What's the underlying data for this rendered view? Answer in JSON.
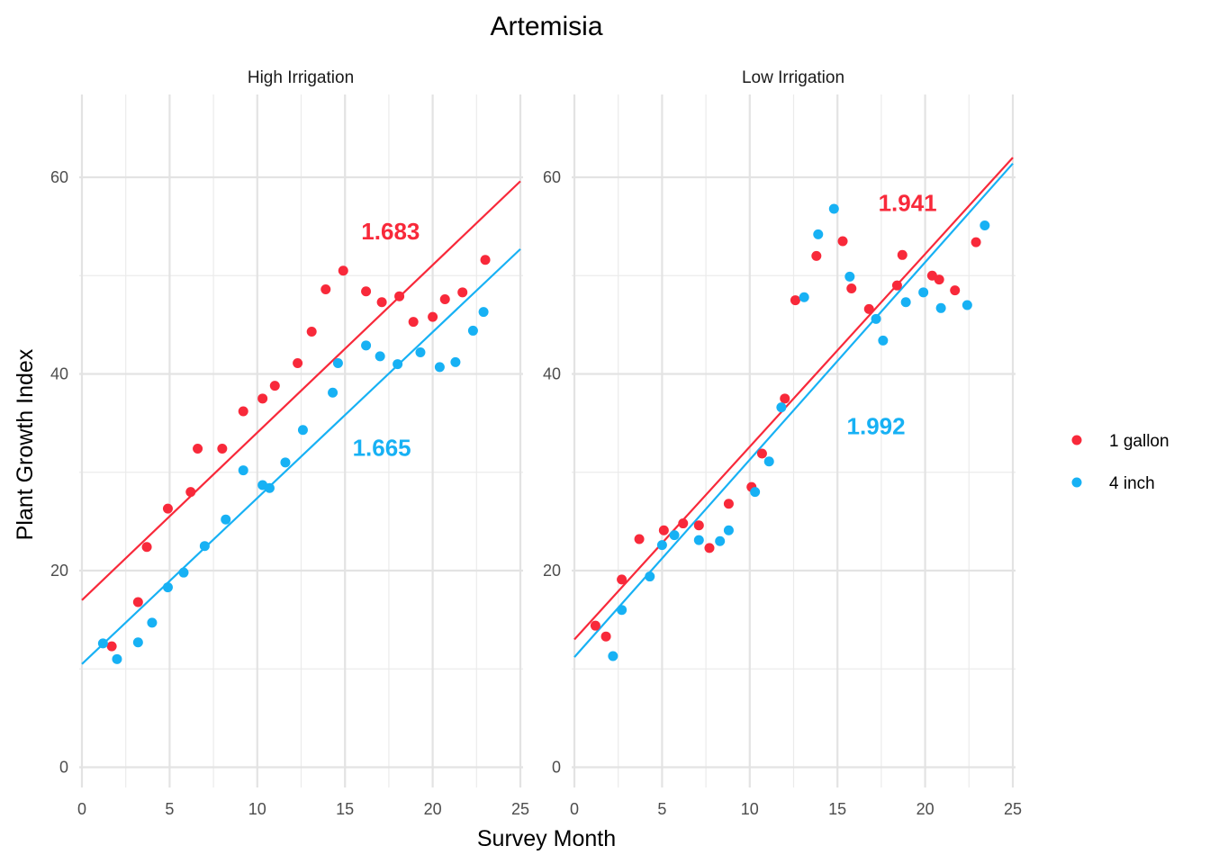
{
  "chart_data": {
    "type": "scatter",
    "title": "Artemisia",
    "xlabel": "Survey Month",
    "ylabel": "Plant Growth Index",
    "xlim": [
      0,
      25
    ],
    "ylim": [
      0,
      68
    ],
    "x_ticks": [
      "0",
      "5",
      "10",
      "15",
      "20",
      "25"
    ],
    "y_ticks": [
      "0",
      "20",
      "40",
      "60"
    ],
    "grid": true,
    "legend_position": "right",
    "legend": [
      {
        "label": "1 gallon",
        "color": "#F8293A"
      },
      {
        "label": "4 inch",
        "color": "#17B1F4"
      }
    ],
    "panels": [
      {
        "strip": "High Irrigation",
        "series": [
          {
            "name": "1 gallon",
            "color": "#F8293A",
            "points": [
              [
                1.7,
                12.3
              ],
              [
                3.2,
                16.8
              ],
              [
                3.7,
                22.4
              ],
              [
                4.9,
                26.3
              ],
              [
                6.2,
                28.0
              ],
              [
                6.6,
                32.4
              ],
              [
                8.0,
                32.4
              ],
              [
                9.2,
                36.2
              ],
              [
                10.3,
                37.5
              ],
              [
                11.0,
                38.8
              ],
              [
                12.3,
                41.1
              ],
              [
                13.1,
                44.3
              ],
              [
                13.9,
                48.6
              ],
              [
                14.9,
                50.5
              ],
              [
                16.2,
                48.4
              ],
              [
                17.1,
                47.3
              ],
              [
                18.1,
                47.9
              ],
              [
                18.9,
                45.3
              ],
              [
                20.0,
                45.8
              ],
              [
                20.7,
                47.6
              ],
              [
                21.7,
                48.3
              ],
              [
                23.0,
                51.6
              ]
            ],
            "trend": {
              "x0": 0,
              "y0": 17.0,
              "x1": 25,
              "y1": 59.6
            },
            "annotation": {
              "text": "1.683",
              "x": 17.6,
              "y": 54.5
            }
          },
          {
            "name": "4 inch",
            "color": "#17B1F4",
            "points": [
              [
                1.2,
                12.6
              ],
              [
                2.0,
                11.0
              ],
              [
                3.2,
                12.7
              ],
              [
                4.0,
                14.7
              ],
              [
                4.9,
                18.3
              ],
              [
                5.8,
                19.8
              ],
              [
                7.0,
                22.5
              ],
              [
                8.2,
                25.2
              ],
              [
                9.2,
                30.2
              ],
              [
                10.3,
                28.7
              ],
              [
                10.7,
                28.4
              ],
              [
                11.6,
                31.0
              ],
              [
                12.6,
                34.3
              ],
              [
                14.3,
                38.1
              ],
              [
                14.6,
                41.1
              ],
              [
                16.2,
                42.9
              ],
              [
                17.0,
                41.8
              ],
              [
                18.0,
                41.0
              ],
              [
                19.3,
                42.2
              ],
              [
                20.4,
                40.7
              ],
              [
                21.3,
                41.2
              ],
              [
                22.3,
                44.4
              ],
              [
                22.9,
                46.3
              ]
            ],
            "trend": {
              "x0": 0,
              "y0": 10.5,
              "x1": 25,
              "y1": 52.7
            },
            "annotation": {
              "text": "1.665",
              "x": 17.1,
              "y": 32.5
            }
          }
        ]
      },
      {
        "strip": "Low Irrigation",
        "series": [
          {
            "name": "1 gallon",
            "color": "#F8293A",
            "points": [
              [
                1.2,
                14.4
              ],
              [
                1.8,
                13.3
              ],
              [
                2.7,
                19.1
              ],
              [
                3.7,
                23.2
              ],
              [
                5.1,
                24.1
              ],
              [
                6.2,
                24.8
              ],
              [
                7.1,
                24.6
              ],
              [
                7.7,
                22.3
              ],
              [
                8.8,
                26.8
              ],
              [
                10.1,
                28.5
              ],
              [
                10.7,
                31.9
              ],
              [
                12.0,
                37.5
              ],
              [
                12.6,
                47.5
              ],
              [
                13.8,
                52.0
              ],
              [
                15.3,
                53.5
              ],
              [
                15.8,
                48.7
              ],
              [
                16.8,
                46.6
              ],
              [
                18.4,
                49.0
              ],
              [
                18.7,
                52.1
              ],
              [
                20.4,
                50.0
              ],
              [
                20.8,
                49.6
              ],
              [
                21.7,
                48.5
              ],
              [
                22.9,
                53.4
              ]
            ],
            "trend": {
              "x0": 0,
              "y0": 13.0,
              "x1": 25,
              "y1": 62.0
            },
            "annotation": {
              "text": "1.941",
              "x": 19.0,
              "y": 57.4
            }
          },
          {
            "name": "4 inch",
            "color": "#17B1F4",
            "points": [
              [
                2.2,
                11.3
              ],
              [
                2.7,
                16.0
              ],
              [
                4.3,
                19.4
              ],
              [
                5.0,
                22.6
              ],
              [
                5.7,
                23.6
              ],
              [
                7.1,
                23.1
              ],
              [
                8.3,
                23.0
              ],
              [
                8.8,
                24.1
              ],
              [
                10.3,
                28.0
              ],
              [
                11.1,
                31.1
              ],
              [
                11.8,
                36.6
              ],
              [
                13.1,
                47.8
              ],
              [
                13.9,
                54.2
              ],
              [
                14.8,
                56.8
              ],
              [
                15.7,
                49.9
              ],
              [
                17.2,
                45.6
              ],
              [
                17.6,
                43.4
              ],
              [
                18.9,
                47.3
              ],
              [
                19.9,
                48.3
              ],
              [
                20.9,
                46.7
              ],
              [
                22.4,
                47.0
              ],
              [
                23.4,
                55.1
              ]
            ],
            "trend": {
              "x0": 0,
              "y0": 11.2,
              "x1": 25,
              "y1": 61.4
            },
            "annotation": {
              "text": "1.992",
              "x": 17.2,
              "y": 34.7
            }
          }
        ]
      }
    ]
  }
}
